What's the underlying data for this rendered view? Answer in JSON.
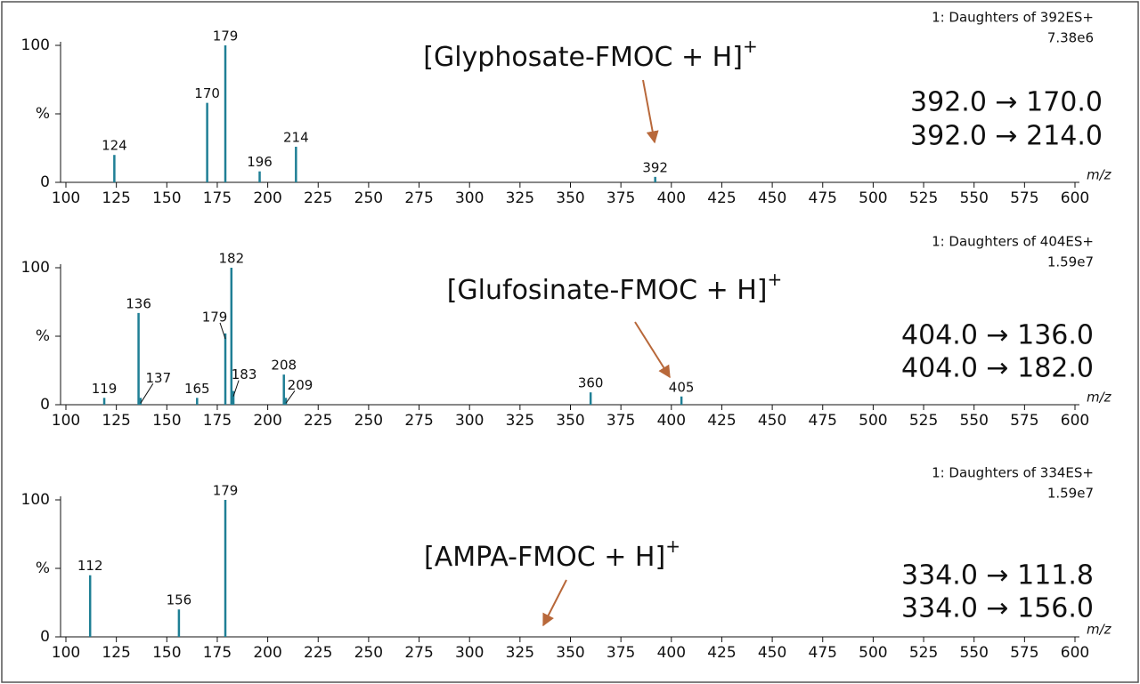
{
  "chart_data": [
    {
      "type": "stem",
      "title": "1: Daughters of 392ES+",
      "subtitle": "7.38e6",
      "annotation": "[Glyphosate-FMOC + H]",
      "annotation_charge": "+",
      "transitions": [
        "392.0 → 170.0",
        "392.0 → 214.0"
      ],
      "x_label": "m/z",
      "x": [
        124,
        170,
        179,
        196,
        214,
        392
      ],
      "values": [
        20,
        58,
        100,
        8,
        26,
        4
      ],
      "color": "#1f7f95",
      "xlim": [
        100,
        600
      ],
      "ylim": [
        0,
        100
      ],
      "xticks": [
        100,
        125,
        150,
        175,
        200,
        225,
        250,
        275,
        300,
        325,
        350,
        375,
        400,
        425,
        450,
        475,
        500,
        525,
        550,
        575,
        600
      ],
      "yticks": [
        0,
        {
          "value": 50,
          "label": "%"
        },
        100
      ]
    },
    {
      "type": "stem",
      "title": "1: Daughters of 404ES+",
      "subtitle": "1.59e7",
      "annotation": "[Glufosinate-FMOC + H]",
      "annotation_charge": "+",
      "transitions": [
        "404.0 → 136.0",
        "404.0 → 182.0"
      ],
      "x_label": "m/z",
      "x": [
        119,
        136,
        137,
        165,
        179,
        182,
        183,
        208,
        209,
        360,
        405
      ],
      "values": [
        5,
        67,
        5,
        5,
        52,
        100,
        10,
        22,
        5,
        9,
        6
      ],
      "color": "#1f7f95",
      "xlim": [
        100,
        600
      ],
      "ylim": [
        0,
        100
      ],
      "xticks": [
        100,
        125,
        150,
        175,
        200,
        225,
        250,
        275,
        300,
        325,
        350,
        375,
        400,
        425,
        450,
        475,
        500,
        525,
        550,
        575,
        600
      ],
      "yticks": [
        0,
        {
          "value": 50,
          "label": "%"
        },
        100
      ]
    },
    {
      "type": "stem",
      "title": "1: Daughters of 334ES+",
      "subtitle": "1.59e7",
      "annotation": "[AMPA-FMOC + H]",
      "annotation_charge": "+",
      "transitions": [
        "334.0 → 111.8",
        "334.0 → 156.0"
      ],
      "x_label": "m/z",
      "x": [
        112,
        156,
        179
      ],
      "values": [
        45,
        20,
        100
      ],
      "color": "#1f7f95",
      "xlim": [
        100,
        600
      ],
      "ylim": [
        0,
        100
      ],
      "xticks": [
        100,
        125,
        150,
        175,
        200,
        225,
        250,
        275,
        300,
        325,
        350,
        375,
        400,
        425,
        450,
        475,
        500,
        525,
        550,
        575,
        600
      ],
      "yticks": [
        0,
        {
          "value": 50,
          "label": "%"
        },
        100
      ]
    }
  ]
}
